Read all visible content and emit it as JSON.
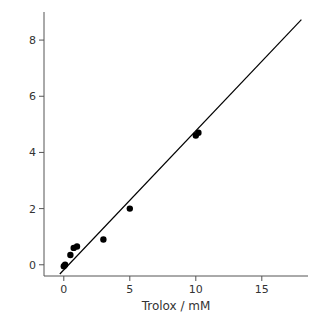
{
  "chart_data": {
    "type": "scatter",
    "xlabel": "Trolox / mM",
    "xlim": [
      -1.5,
      18.5
    ],
    "ylim": [
      -0.4,
      9.0
    ],
    "xticks": [
      0,
      5,
      10,
      15
    ],
    "yticks": [
      0,
      2,
      4,
      6,
      8
    ],
    "series": [
      {
        "type": "scatter",
        "color": "#000000",
        "x": [
          0.0,
          0.1,
          0.5,
          0.75,
          1.0,
          3.0,
          5.0,
          10.0,
          10.2
        ],
        "values": [
          -0.05,
          0.0,
          0.35,
          0.6,
          0.65,
          0.9,
          2.0,
          4.6,
          4.7
        ]
      },
      {
        "type": "line",
        "color": "#000000",
        "x": [
          -0.3,
          18.0
        ],
        "values": [
          -0.3285,
          8.73
        ]
      }
    ]
  }
}
